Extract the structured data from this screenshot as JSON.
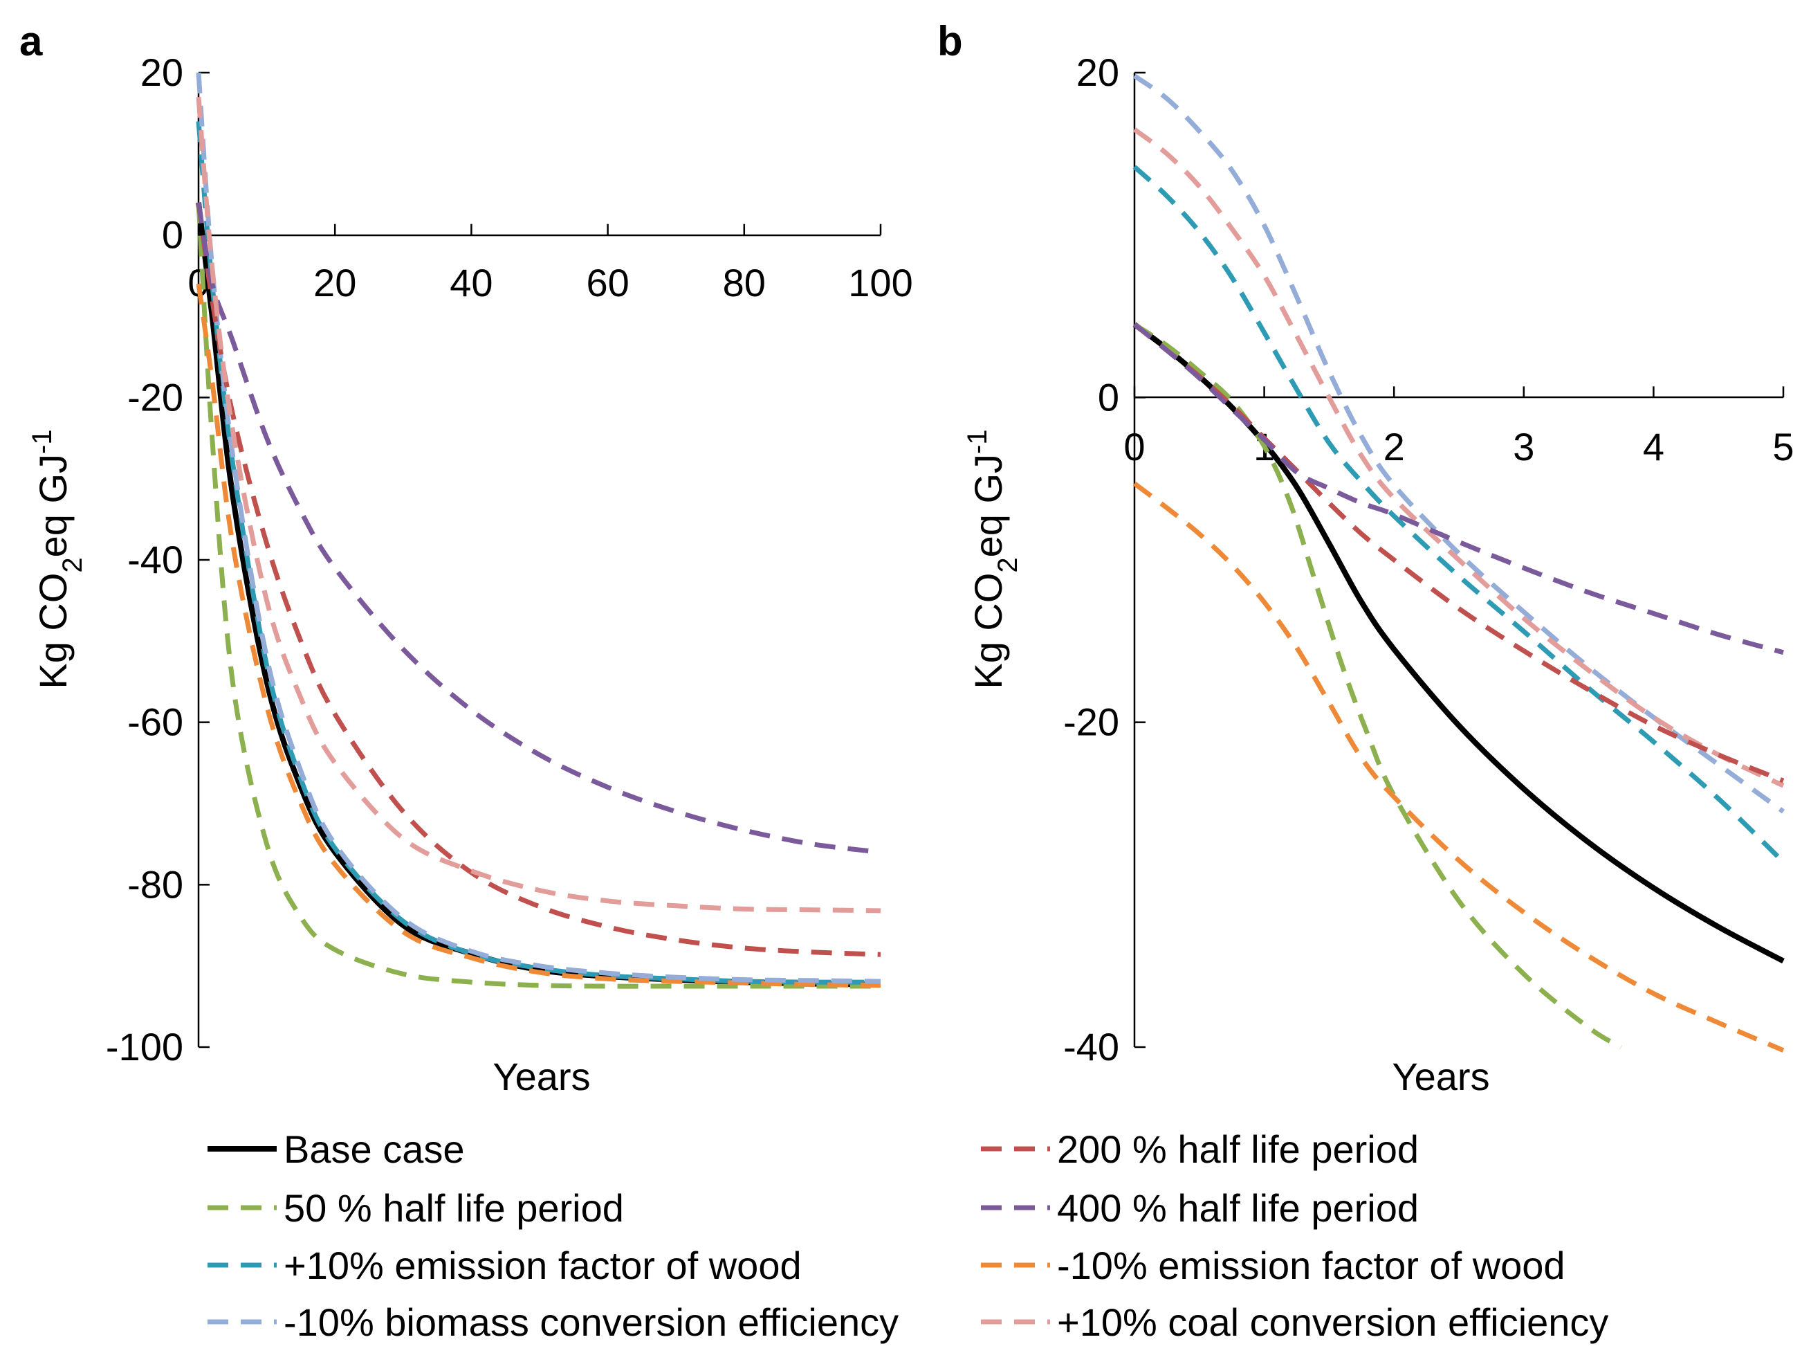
{
  "figure": {
    "x_title": "Years",
    "y_title_prefix": "Kg CO",
    "y_title_sub": "2",
    "y_title_mid": "eq GJ",
    "y_title_sup": "-1"
  },
  "legend": [
    {
      "key": "base",
      "label": "Base case",
      "color": "#000000",
      "dashed": false
    },
    {
      "key": "hl200",
      "label": "200 % half life period",
      "color": "#c0504d",
      "dashed": true
    },
    {
      "key": "hl50",
      "label": "50 % half life period",
      "color": "#8cb04e",
      "dashed": true
    },
    {
      "key": "hl400",
      "label": "400 % half life period",
      "color": "#7b5a9c",
      "dashed": true
    },
    {
      "key": "efw_plus",
      "label": "+10% emission factor of wood",
      "color": "#2e9bb5",
      "dashed": true
    },
    {
      "key": "efw_minus",
      "label": "-10% emission factor of wood",
      "color": "#ee8a37",
      "dashed": true
    },
    {
      "key": "bce_minus",
      "label": "-10% biomass conversion efficiency",
      "color": "#93acd8",
      "dashed": true
    },
    {
      "key": "cce_plus",
      "label": "+10% coal conversion efficiency",
      "color": "#e29d9a",
      "dashed": true
    }
  ],
  "chart_data": [
    {
      "panel": "a",
      "type": "line",
      "xlabel": "Years",
      "ylabel": "Kg CO2eq GJ-1",
      "xlim": [
        0,
        100
      ],
      "ylim": [
        -100,
        20
      ],
      "xticks": [
        "0",
        "20",
        "40",
        "60",
        "80",
        "100"
      ],
      "yticks": [
        "20",
        "0",
        "-20",
        "-40",
        "-60",
        "-80",
        "-100"
      ],
      "series": [
        {
          "key": "base",
          "name": "Base case",
          "x": [
            0,
            2,
            5,
            10,
            15,
            20,
            30,
            40,
            50,
            60,
            70,
            80,
            90,
            100
          ],
          "y": [
            4,
            -10,
            -32,
            -55,
            -68,
            -76,
            -85,
            -88.5,
            -90.5,
            -91.3,
            -91.7,
            -92,
            -92.2,
            -92.3
          ]
        },
        {
          "key": "hl50",
          "name": "50 % half life period",
          "x": [
            0,
            2,
            5,
            10,
            15,
            20,
            30,
            40,
            50,
            60,
            70,
            80,
            90,
            100
          ],
          "y": [
            4,
            -25,
            -55,
            -75,
            -84,
            -88,
            -91,
            -92,
            -92.4,
            -92.5,
            -92.5,
            -92.5,
            -92.5,
            -92.5
          ]
        },
        {
          "key": "efw_plus",
          "name": "+10% emission factor of wood",
          "x": [
            0,
            2,
            5,
            10,
            15,
            20,
            30,
            40,
            50,
            60,
            70,
            80,
            90,
            100
          ],
          "y": [
            14,
            -6,
            -28,
            -53,
            -67,
            -75.5,
            -84.5,
            -88.5,
            -90.3,
            -91.2,
            -91.6,
            -91.9,
            -92,
            -92
          ]
        },
        {
          "key": "efw_minus",
          "name": "-10% emission factor of wood",
          "x": [
            0,
            2,
            5,
            10,
            15,
            20,
            30,
            40,
            50,
            60,
            70,
            80,
            90,
            100
          ],
          "y": [
            -6,
            -18,
            -38,
            -58,
            -70,
            -77.5,
            -85.8,
            -89,
            -90.8,
            -91.6,
            -91.9,
            -92.1,
            -92.3,
            -92.4
          ]
        },
        {
          "key": "bce_minus",
          "name": "-10% biomass conversion efficiency",
          "x": [
            0,
            2,
            5,
            10,
            15,
            20,
            30,
            40,
            50,
            60,
            70,
            80,
            90,
            100
          ],
          "y": [
            20,
            -4,
            -27,
            -52,
            -66,
            -75,
            -84.2,
            -88.2,
            -90,
            -90.9,
            -91.4,
            -91.7,
            -91.8,
            -91.9
          ]
        },
        {
          "key": "hl200",
          "name": "200 % half life period",
          "x": [
            0,
            2,
            5,
            10,
            15,
            20,
            30,
            40,
            50,
            60,
            70,
            80,
            90,
            100
          ],
          "y": [
            4,
            -8,
            -22,
            -38,
            -50,
            -59,
            -71,
            -78.5,
            -82.7,
            -85.2,
            -86.8,
            -87.8,
            -88.3,
            -88.6
          ]
        },
        {
          "key": "hl400",
          "name": "400 % half life period",
          "x": [
            0,
            2,
            5,
            10,
            15,
            20,
            30,
            40,
            50,
            60,
            70,
            80,
            90,
            100
          ],
          "y": [
            4,
            -6,
            -13,
            -25,
            -34,
            -41,
            -51,
            -58.5,
            -64,
            -68,
            -71,
            -73.3,
            -75,
            -76
          ]
        },
        {
          "key": "cce_plus",
          "name": "+10% coal conversion efficiency",
          "x": [
            0,
            2,
            5,
            10,
            15,
            20,
            30,
            40,
            50,
            60,
            70,
            80,
            90,
            100
          ],
          "y": [
            17,
            -4,
            -24,
            -45,
            -57,
            -65,
            -74.3,
            -78.3,
            -80.7,
            -82,
            -82.6,
            -83,
            -83.1,
            -83.2
          ]
        }
      ]
    },
    {
      "panel": "b",
      "type": "line",
      "xlabel": "Years",
      "ylabel": "Kg CO2eq GJ-1",
      "xlim": [
        0,
        5
      ],
      "ylim": [
        -40,
        20
      ],
      "xticks": [
        "0",
        "1",
        "2",
        "3",
        "4",
        "5"
      ],
      "yticks": [
        "20",
        "0",
        "-20",
        "-40"
      ],
      "series": [
        {
          "key": "base",
          "name": "Base case",
          "x": [
            0,
            0.25,
            0.5,
            0.75,
            1,
            1.25,
            1.5,
            1.75,
            2,
            2.5,
            3,
            3.5,
            4,
            4.5,
            5
          ],
          "y": [
            4.5,
            3,
            1.3,
            -0.6,
            -2.8,
            -5.5,
            -9,
            -12.6,
            -15.5,
            -20.2,
            -24.1,
            -27.4,
            -30.2,
            -32.6,
            -34.7
          ]
        },
        {
          "key": "hl50",
          "name": "50 % half life period",
          "x": [
            0,
            0.25,
            0.5,
            0.75,
            1,
            1.2,
            1.4,
            1.6,
            1.8,
            2,
            2.5,
            3,
            3.5,
            3.75
          ],
          "y": [
            4.5,
            3.2,
            1.6,
            -0.2,
            -3,
            -6.5,
            -11.5,
            -16.5,
            -20.8,
            -24.5,
            -31,
            -35.5,
            -38.8,
            -40
          ]
        },
        {
          "key": "efw_plus",
          "name": "+10% emission factor of wood",
          "x": [
            0,
            0.25,
            0.5,
            0.75,
            1,
            1.25,
            1.5,
            1.75,
            2,
            2.5,
            3,
            3.5,
            4,
            4.5,
            5
          ],
          "y": [
            14.2,
            12.4,
            10.2,
            7.4,
            4,
            0.5,
            -2.8,
            -5.2,
            -7.3,
            -11,
            -14.4,
            -17.9,
            -21.2,
            -24.7,
            -28.6
          ]
        },
        {
          "key": "efw_minus",
          "name": "-10% emission factor of wood",
          "x": [
            0,
            0.25,
            0.5,
            0.75,
            1,
            1.25,
            1.5,
            1.75,
            2,
            2.5,
            3,
            3.5,
            4,
            4.5,
            5
          ],
          "y": [
            -5.3,
            -6.8,
            -8.4,
            -10.3,
            -12.6,
            -15.4,
            -18.8,
            -22.2,
            -24.6,
            -28.5,
            -31.7,
            -34.4,
            -36.7,
            -38.5,
            -40.2
          ]
        },
        {
          "key": "bce_minus",
          "name": "-10% biomass conversion efficiency",
          "x": [
            0,
            0.25,
            0.5,
            0.75,
            1,
            1.25,
            1.5,
            1.75,
            2,
            2.5,
            3,
            3.5,
            4,
            4.5,
            5
          ],
          "y": [
            19.8,
            18.4,
            16.4,
            14,
            10.6,
            6.2,
            1.6,
            -2.4,
            -5.4,
            -9.6,
            -13.2,
            -16.6,
            -19.7,
            -22.6,
            -25.5
          ]
        },
        {
          "key": "cce_plus",
          "name": "+10% coal conversion efficiency",
          "x": [
            0,
            0.25,
            0.5,
            0.75,
            1,
            1.25,
            1.5,
            1.75,
            2,
            2.5,
            3,
            3.5,
            4,
            4.5,
            5
          ],
          "y": [
            16.5,
            15,
            13,
            10.4,
            7.5,
            3.8,
            0,
            -3.6,
            -6.2,
            -10,
            -13.6,
            -16.8,
            -19.7,
            -22,
            -23.9
          ]
        },
        {
          "key": "hl200",
          "name": "200 % half life period",
          "x": [
            0,
            0.25,
            0.5,
            0.75,
            1,
            1.25,
            1.5,
            1.75,
            2,
            2.5,
            3,
            3.5,
            4,
            4.5,
            5
          ],
          "y": [
            4.5,
            2.9,
            1.3,
            -0.5,
            -2.5,
            -4.5,
            -6.5,
            -8.4,
            -10,
            -13,
            -15.6,
            -18,
            -20.2,
            -22,
            -23.6
          ]
        },
        {
          "key": "hl400",
          "name": "400 % half life period",
          "x": [
            0,
            0.25,
            0.5,
            0.75,
            1,
            1.25,
            1.5,
            1.75,
            2,
            2.5,
            3,
            3.5,
            4,
            4.5,
            5
          ],
          "y": [
            4.5,
            2.9,
            1.2,
            -0.7,
            -2.6,
            -4.6,
            -5.6,
            -6.5,
            -7.2,
            -8.9,
            -10.5,
            -12,
            -13.3,
            -14.6,
            -15.7
          ]
        }
      ]
    }
  ]
}
